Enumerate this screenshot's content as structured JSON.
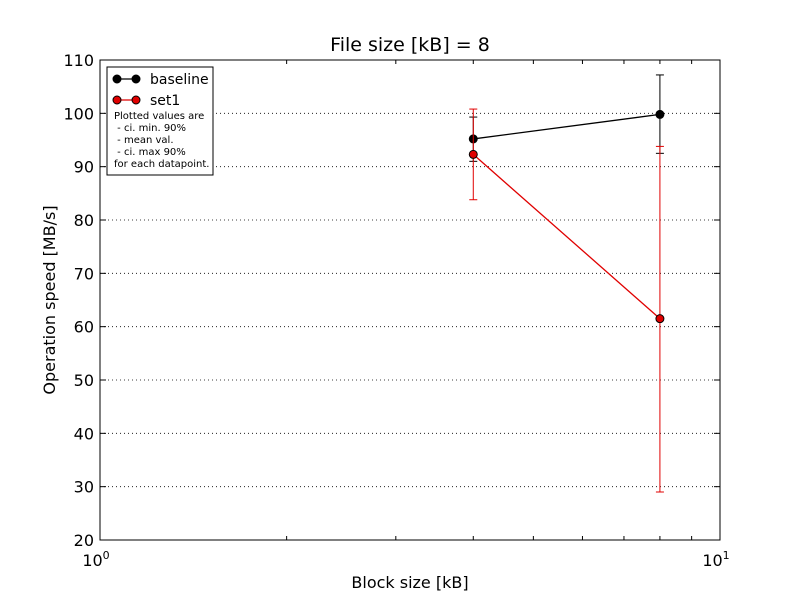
{
  "chart_data": {
    "type": "line",
    "title": "File size [kB] = 8",
    "xlabel": "Block size [kB]",
    "ylabel": "Operation speed [MB/s]",
    "xscale": "log",
    "xlim": [
      1,
      10
    ],
    "ylim": [
      20,
      110
    ],
    "xticks": [
      1,
      10
    ],
    "xtick_labels": [
      {
        "base": "10",
        "exp": "0"
      },
      {
        "base": "10",
        "exp": "1"
      }
    ],
    "yticks": [
      20,
      30,
      40,
      50,
      60,
      70,
      80,
      90,
      100,
      110
    ],
    "ygrid": true,
    "legend_position": "top-left",
    "legend_note": [
      "Plotted values are",
      " - ci. min. 90%",
      " - mean val.",
      " - ci. max 90%",
      "for each datapoint."
    ],
    "series": [
      {
        "name": "baseline",
        "color": "#000000",
        "x": [
          4,
          8
        ],
        "mean": [
          95.2,
          99.8
        ],
        "ci_min": [
          91.0,
          92.5
        ],
        "ci_max": [
          99.3,
          107.2
        ]
      },
      {
        "name": "set1",
        "color": "#e00000",
        "x": [
          4,
          8
        ],
        "mean": [
          92.3,
          61.5
        ],
        "ci_min": [
          83.8,
          29.0
        ],
        "ci_max": [
          100.8,
          93.8
        ]
      }
    ]
  }
}
